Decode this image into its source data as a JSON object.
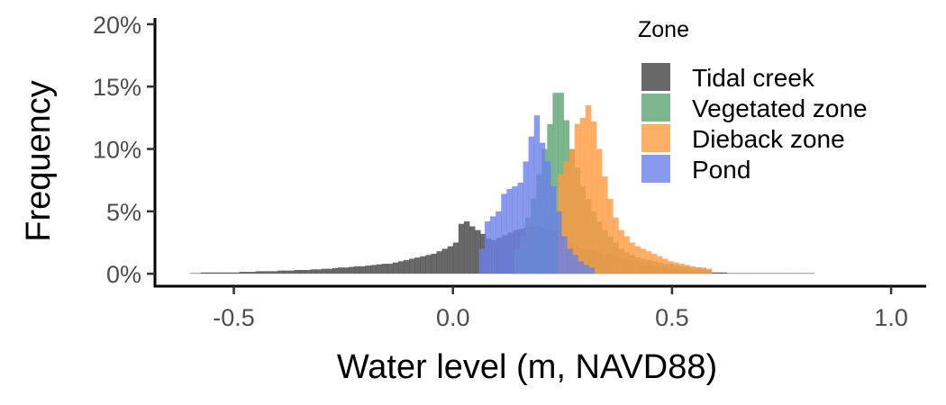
{
  "chart_data": {
    "type": "histogram",
    "xlabel": "Water level (m, NAVD88)",
    "ylabel": "Frequency",
    "xlim": [
      -0.68,
      1.08
    ],
    "ylim": [
      -0.01,
      0.205
    ],
    "x_ticks": [
      -0.5,
      0.0,
      0.5,
      1.0
    ],
    "x_tick_labels": [
      "-0.5",
      "0.0",
      "0.5",
      "1.0"
    ],
    "y_ticks": [
      0,
      0.05,
      0.1,
      0.15,
      0.2
    ],
    "y_tick_labels": [
      "0%",
      "5%",
      "10%",
      "15%",
      "20%"
    ],
    "bin_width": 0.0125,
    "grid": false,
    "legend": {
      "title": "Zone",
      "position": "top-right"
    },
    "series": [
      {
        "name": "Tidal creek",
        "color": "#4d4d4d",
        "opacity": 0.85,
        "bin_start": -0.6,
        "frequencies": [
          0.0005,
          0.0005,
          0.001,
          0.001,
          0.001,
          0.001,
          0.001,
          0.001,
          0.001,
          0.0015,
          0.0015,
          0.0015,
          0.002,
          0.002,
          0.002,
          0.002,
          0.0025,
          0.0025,
          0.0025,
          0.003,
          0.003,
          0.003,
          0.0035,
          0.0035,
          0.004,
          0.004,
          0.0045,
          0.005,
          0.005,
          0.0055,
          0.006,
          0.006,
          0.0065,
          0.007,
          0.0075,
          0.008,
          0.008,
          0.009,
          0.01,
          0.011,
          0.012,
          0.013,
          0.014,
          0.015,
          0.016,
          0.018,
          0.02,
          0.022,
          0.025,
          0.04,
          0.042,
          0.038,
          0.035,
          0.032,
          0.028,
          0.027,
          0.029,
          0.031,
          0.033,
          0.035,
          0.036,
          0.037,
          0.038,
          0.038,
          0.037,
          0.036,
          0.034,
          0.031,
          0.028,
          0.025,
          0.022,
          0.02,
          0.019,
          0.018,
          0.017,
          0.016,
          0.015,
          0.014,
          0.013,
          0.012,
          0.011,
          0.01,
          0.009,
          0.008,
          0.007,
          0.006,
          0.005,
          0.004,
          0.0035,
          0.003,
          0.0025,
          0.002,
          0.002,
          0.0015,
          0.0015,
          0.001,
          0.001,
          0.001,
          0.0005,
          0.0005,
          0.0005,
          0.0005,
          0.0005,
          0.0005,
          0.0005,
          0.0005,
          0.0005,
          0.0005,
          0.0005,
          0.0005,
          0.0005,
          0.0005,
          0.0005,
          0.0005
        ]
      },
      {
        "name": "Vegetated zone",
        "color": "#66a87a",
        "opacity": 0.85,
        "bin_start": 0.14,
        "frequencies": [
          0.02,
          0.03,
          0.045,
          0.06,
          0.08,
          0.1,
          0.12,
          0.145,
          0.145,
          0.123,
          0.1,
          0.085,
          0.07,
          0.06,
          0.05,
          0.042,
          0.035,
          0.03,
          0.025,
          0.02,
          0.017,
          0.015,
          0.013,
          0.012,
          0.011,
          0.01,
          0.009,
          0.008,
          0.008,
          0.007,
          0.006,
          0.006,
          0.005,
          0.005,
          0.004,
          0.003
        ]
      },
      {
        "name": "Dieback zone",
        "color": "#ff9a40",
        "opacity": 0.8,
        "bin_start": 0.24,
        "frequencies": [
          0.08,
          0.09,
          0.1,
          0.12,
          0.125,
          0.135,
          0.122,
          0.1,
          0.078,
          0.06,
          0.045,
          0.035,
          0.03,
          0.025,
          0.022,
          0.02,
          0.018,
          0.016,
          0.014,
          0.012,
          0.01,
          0.009,
          0.008,
          0.007,
          0.006,
          0.005,
          0.005,
          0.004
        ]
      },
      {
        "name": "Pond",
        "color": "#6b7fe8",
        "opacity": 0.8,
        "bin_start": 0.06,
        "frequencies": [
          0.02,
          0.042,
          0.046,
          0.05,
          0.064,
          0.068,
          0.07,
          0.073,
          0.09,
          0.11,
          0.127,
          0.105,
          0.09,
          0.07,
          0.05,
          0.03,
          0.02,
          0.015,
          0.01,
          0.007,
          0.005
        ]
      }
    ]
  }
}
